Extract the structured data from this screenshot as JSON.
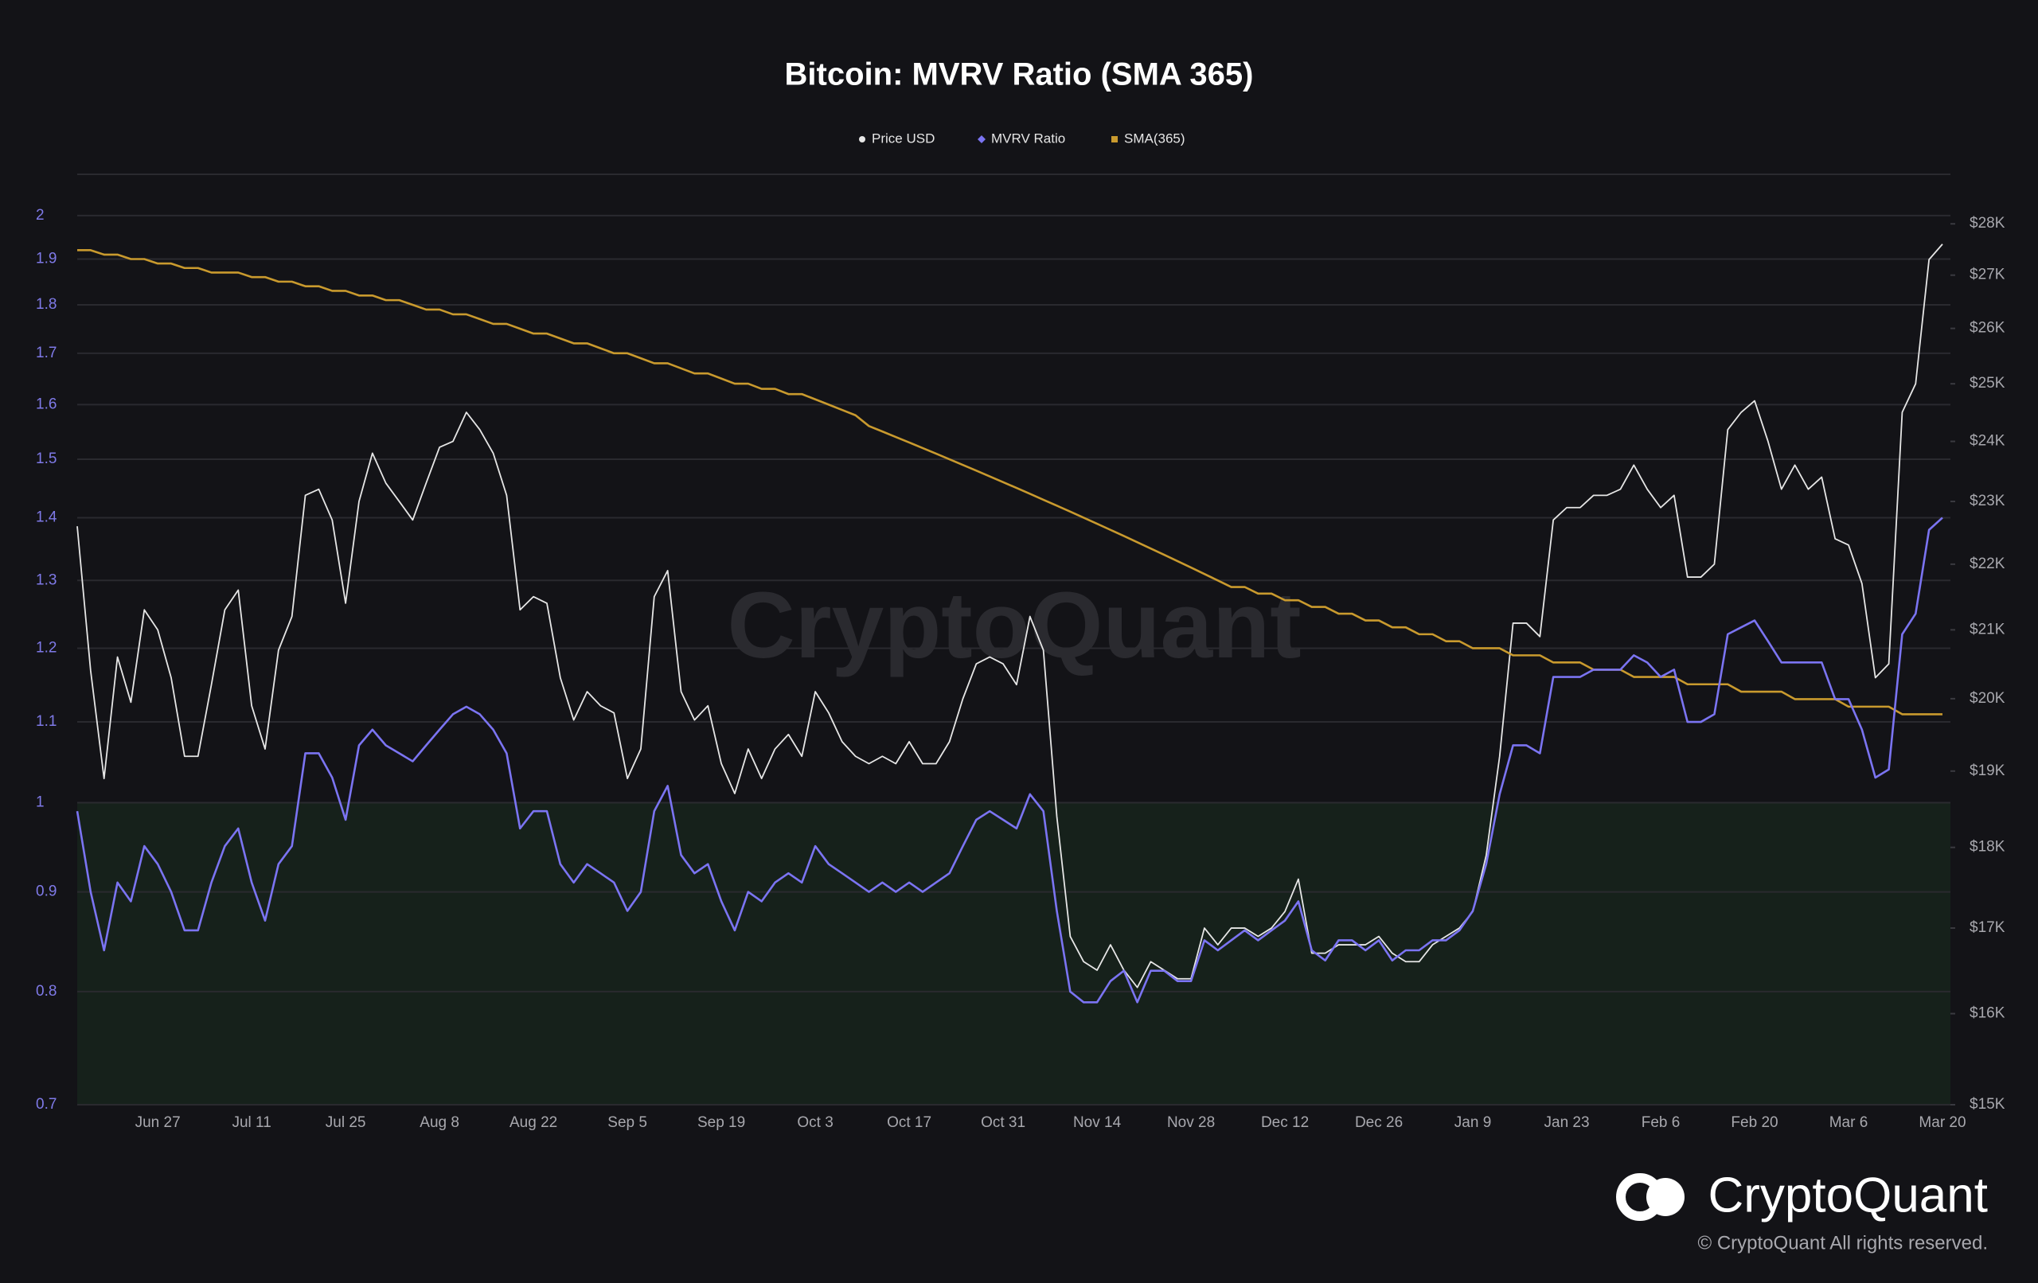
{
  "chart_data": {
    "type": "line",
    "title": "Bitcoin: MVRV Ratio (SMA 365)",
    "watermark": "CryptoQuant",
    "brand": "CryptoQuant",
    "copyright": "© CryptoQuant All rights reserved.",
    "ylog": true,
    "y2log": true,
    "grid": true,
    "shade_below": 1,
    "shade_color": "#16211b",
    "ylim": [
      0.7,
      2.1
    ],
    "yticks": [
      0.7,
      0.8,
      0.9,
      1,
      1.1,
      1.2,
      1.3,
      1.4,
      1.5,
      1.6,
      1.7,
      1.8,
      1.9,
      2
    ],
    "y2lim": [
      15000,
      29000
    ],
    "y2ticks": [
      {
        "value": 15000,
        "label": "$15K"
      },
      {
        "value": 16000,
        "label": "$16K"
      },
      {
        "value": 17000,
        "label": "$17K"
      },
      {
        "value": 18000,
        "label": "$18K"
      },
      {
        "value": 19000,
        "label": "$19K"
      },
      {
        "value": 20000,
        "label": "$20K"
      },
      {
        "value": 21000,
        "label": "$21K"
      },
      {
        "value": 22000,
        "label": "$22K"
      },
      {
        "value": 23000,
        "label": "$23K"
      },
      {
        "value": 24000,
        "label": "$24K"
      },
      {
        "value": 25000,
        "label": "$25K"
      },
      {
        "value": 26000,
        "label": "$26K"
      },
      {
        "value": 27000,
        "label": "$27K"
      },
      {
        "value": 28000,
        "label": "$28K"
      }
    ],
    "categories": [
      null,
      null,
      null,
      null,
      null,
      null,
      "Jun 27",
      null,
      null,
      null,
      null,
      null,
      null,
      "Jul 11",
      null,
      null,
      null,
      null,
      null,
      null,
      "Jul 25",
      null,
      null,
      null,
      null,
      null,
      null,
      "Aug 8",
      null,
      null,
      null,
      null,
      null,
      null,
      "Aug 22",
      null,
      null,
      null,
      null,
      null,
      null,
      "Sep 5",
      null,
      null,
      null,
      null,
      null,
      null,
      "Sep 19",
      null,
      null,
      null,
      null,
      null,
      null,
      "Oct 3",
      null,
      null,
      null,
      null,
      null,
      null,
      "Oct 17",
      null,
      null,
      null,
      null,
      null,
      null,
      "Oct 31",
      null,
      null,
      null,
      null,
      null,
      null,
      "Nov 14",
      null,
      null,
      null,
      null,
      null,
      null,
      "Nov 28",
      null,
      null,
      null,
      null,
      null,
      null,
      "Dec 12",
      null,
      null,
      null,
      null,
      null,
      null,
      "Dec 26",
      null,
      null,
      null,
      null,
      null,
      null,
      "Jan 9",
      null,
      null,
      null,
      null,
      null,
      null,
      "Jan 23",
      null,
      null,
      null,
      null,
      null,
      null,
      "Feb 6",
      null,
      null,
      null,
      null,
      null,
      null,
      "Feb 20",
      null,
      null,
      null,
      null,
      null,
      null,
      "Mar 6",
      null,
      null,
      null,
      null,
      null,
      null,
      "Mar 20"
    ],
    "series": [
      {
        "name": "Price USD",
        "color": "#e6e6e6",
        "marker": "circle",
        "axis": "y2",
        "values": [
          22600,
          20400,
          18900,
          20600,
          19950,
          21300,
          21000,
          20300,
          19200,
          19200,
          20200,
          21300,
          21600,
          19900,
          19300,
          20700,
          21200,
          23100,
          23200,
          22700,
          21400,
          23000,
          23800,
          23300,
          23000,
          22700,
          23300,
          23900,
          24000,
          24500,
          24200,
          23800,
          23100,
          21300,
          21500,
          21400,
          20300,
          19700,
          20100,
          19900,
          19800,
          18900,
          19300,
          21500,
          21900,
          20100,
          19700,
          19900,
          19100,
          18700,
          19300,
          18900,
          19300,
          19500,
          19200,
          20100,
          19800,
          19400,
          19200,
          19100,
          19200,
          19100,
          19400,
          19100,
          19100,
          19400,
          20000,
          20500,
          20600,
          20500,
          20200,
          21200,
          20700,
          18400,
          16900,
          16600,
          16500,
          16800,
          16500,
          16300,
          16600,
          16500,
          16400,
          16400,
          17000,
          16800,
          17000,
          17000,
          16900,
          17000,
          17200,
          17600,
          16700,
          16700,
          16800,
          16800,
          16800,
          16900,
          16700,
          16600,
          16600,
          16800,
          16900,
          17000,
          17200,
          17900,
          19200,
          21100,
          21100,
          20900,
          22700,
          22900,
          22900,
          23100,
          23100,
          23200,
          23600,
          23200,
          22900,
          23100,
          21800,
          21800,
          22000,
          24200,
          24500,
          24700,
          24000,
          23200,
          23600,
          23200,
          23400,
          22400,
          22300,
          21700,
          20300,
          20500,
          24500,
          25000,
          27300,
          27600
        ]
      },
      {
        "name": "MVRV Ratio",
        "color": "#7b74f2",
        "marker": "diamond",
        "values": [
          0.99,
          0.9,
          0.84,
          0.91,
          0.89,
          0.95,
          0.93,
          0.9,
          0.86,
          0.86,
          0.91,
          0.95,
          0.97,
          0.91,
          0.87,
          0.93,
          0.95,
          1.06,
          1.06,
          1.03,
          0.98,
          1.07,
          1.09,
          1.07,
          1.06,
          1.05,
          1.07,
          1.09,
          1.11,
          1.12,
          1.11,
          1.09,
          1.06,
          0.97,
          0.99,
          0.99,
          0.93,
          0.91,
          0.93,
          0.92,
          0.91,
          0.88,
          0.9,
          0.99,
          1.02,
          0.94,
          0.92,
          0.93,
          0.89,
          0.86,
          0.9,
          0.89,
          0.91,
          0.92,
          0.91,
          0.95,
          0.93,
          0.92,
          0.91,
          0.9,
          0.91,
          0.9,
          0.91,
          0.9,
          0.91,
          0.92,
          0.95,
          0.98,
          0.99,
          0.98,
          0.97,
          1.01,
          0.99,
          0.88,
          0.8,
          0.79,
          0.79,
          0.81,
          0.82,
          0.79,
          0.82,
          0.82,
          0.81,
          0.81,
          0.85,
          0.84,
          0.85,
          0.86,
          0.85,
          0.86,
          0.87,
          0.89,
          0.84,
          0.83,
          0.85,
          0.85,
          0.84,
          0.85,
          0.83,
          0.84,
          0.84,
          0.85,
          0.85,
          0.86,
          0.88,
          0.93,
          1.01,
          1.07,
          1.07,
          1.06,
          1.16,
          1.16,
          1.16,
          1.17,
          1.17,
          1.17,
          1.19,
          1.18,
          1.16,
          1.17,
          1.1,
          1.1,
          1.11,
          1.22,
          1.23,
          1.24,
          1.21,
          1.18,
          1.18,
          1.18,
          1.18,
          1.13,
          1.13,
          1.09,
          1.03,
          1.04,
          1.22,
          1.25,
          1.38,
          1.4
        ]
      },
      {
        "name": "SMA(365)",
        "color": "#c99a2e",
        "marker": "square",
        "values": [
          1.92,
          1.92,
          1.91,
          1.91,
          1.9,
          1.9,
          1.89,
          1.89,
          1.88,
          1.88,
          1.87,
          1.87,
          1.87,
          1.86,
          1.86,
          1.85,
          1.85,
          1.84,
          1.84,
          1.83,
          1.83,
          1.82,
          1.82,
          1.81,
          1.81,
          1.8,
          1.79,
          1.79,
          1.78,
          1.78,
          1.77,
          1.76,
          1.76,
          1.75,
          1.74,
          1.74,
          1.73,
          1.72,
          1.72,
          1.71,
          1.7,
          1.7,
          1.69,
          1.68,
          1.68,
          1.67,
          1.66,
          1.66,
          1.65,
          1.64,
          1.64,
          1.63,
          1.63,
          1.62,
          1.62,
          1.61,
          1.6,
          1.59,
          1.58,
          1.56,
          1.55,
          1.54,
          1.53,
          1.52,
          1.51,
          1.5,
          1.49,
          1.48,
          1.47,
          1.46,
          1.45,
          1.44,
          1.43,
          1.42,
          1.41,
          1.4,
          1.39,
          1.38,
          1.37,
          1.36,
          1.35,
          1.34,
          1.33,
          1.32,
          1.31,
          1.3,
          1.29,
          1.29,
          1.28,
          1.28,
          1.27,
          1.27,
          1.26,
          1.26,
          1.25,
          1.25,
          1.24,
          1.24,
          1.23,
          1.23,
          1.22,
          1.22,
          1.21,
          1.21,
          1.2,
          1.2,
          1.2,
          1.19,
          1.19,
          1.19,
          1.18,
          1.18,
          1.18,
          1.17,
          1.17,
          1.17,
          1.16,
          1.16,
          1.16,
          1.16,
          1.15,
          1.15,
          1.15,
          1.15,
          1.14,
          1.14,
          1.14,
          1.14,
          1.13,
          1.13,
          1.13,
          1.13,
          1.12,
          1.12,
          1.12,
          1.12,
          1.11,
          1.11,
          1.11,
          1.11
        ]
      }
    ]
  }
}
